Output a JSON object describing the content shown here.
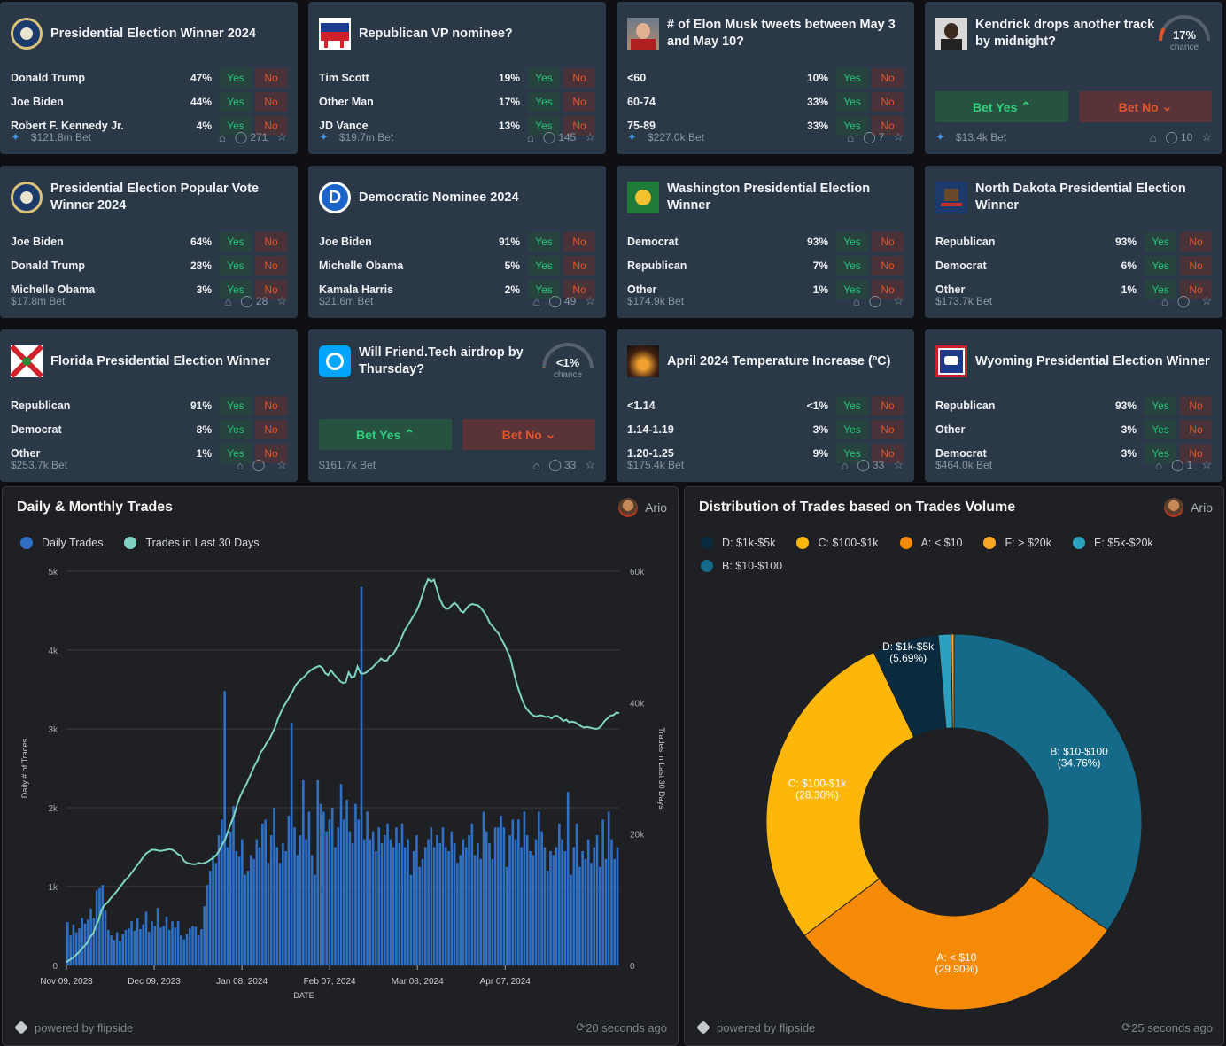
{
  "cards": [
    {
      "title": "Presidential Election Winner 2024",
      "logo": "presidential-seal",
      "rows": [
        {
          "name": "Donald Trump",
          "pct": "47%"
        },
        {
          "name": "Joe Biden",
          "pct": "44%"
        },
        {
          "name": "Robert F. Kennedy Jr.",
          "pct": "4%"
        }
      ],
      "volume": "$121.8m Bet",
      "comments": "271",
      "pinned": true
    },
    {
      "title": "Republican VP nominee?",
      "logo": "gop-elephant",
      "rows": [
        {
          "name": "Tim Scott",
          "pct": "19%"
        },
        {
          "name": "Other Man",
          "pct": "17%"
        },
        {
          "name": "JD Vance",
          "pct": "13%"
        }
      ],
      "volume": "$19.7m Bet",
      "comments": "145",
      "pinned": true
    },
    {
      "title": "# of Elon Musk tweets between May 3 and May 10?",
      "logo": "elon-photo",
      "rows": [
        {
          "name": "<60",
          "pct": "10%"
        },
        {
          "name": "60-74",
          "pct": "33%"
        },
        {
          "name": "75-89",
          "pct": "33%"
        }
      ],
      "volume": "$227.0k Bet",
      "comments": "7",
      "pinned": true
    },
    {
      "title": "Kendrick drops another track by midnight?",
      "logo": "kendrick-photo",
      "gauge": {
        "pct": "17%",
        "label": "chance",
        "value": 0.17
      },
      "bet_yes": "Bet Yes",
      "bet_no": "Bet No",
      "volume": "$13.4k Bet",
      "comments": "10",
      "pinned": true
    },
    {
      "title": "Presidential Election Popular Vote Winner 2024",
      "logo": "presidential-seal",
      "rows": [
        {
          "name": "Joe Biden",
          "pct": "64%"
        },
        {
          "name": "Donald Trump",
          "pct": "28%"
        },
        {
          "name": "Michelle Obama",
          "pct": "3%"
        }
      ],
      "volume": "$17.8m Bet",
      "comments": "28",
      "pinned": false
    },
    {
      "title": "Democratic Nominee 2024",
      "logo": "dem-d",
      "rows": [
        {
          "name": "Joe Biden",
          "pct": "91%"
        },
        {
          "name": "Michelle Obama",
          "pct": "5%"
        },
        {
          "name": "Kamala Harris",
          "pct": "2%"
        }
      ],
      "volume": "$21.6m Bet",
      "comments": "49",
      "pinned": false
    },
    {
      "title": "Washington Presidential Election Winner",
      "logo": "wa-flag",
      "rows": [
        {
          "name": "Democrat",
          "pct": "93%"
        },
        {
          "name": "Republican",
          "pct": "7%"
        },
        {
          "name": "Other",
          "pct": "1%"
        }
      ],
      "volume": "$174.9k Bet",
      "comments": "",
      "pinned": false
    },
    {
      "title": "North Dakota Presidential Election Winner",
      "logo": "nd-flag",
      "rows": [
        {
          "name": "Republican",
          "pct": "93%"
        },
        {
          "name": "Democrat",
          "pct": "6%"
        },
        {
          "name": "Other",
          "pct": "1%"
        }
      ],
      "volume": "$173.7k Bet",
      "comments": "",
      "pinned": false
    },
    {
      "title": "Florida Presidential Election Winner",
      "logo": "fl-flag",
      "rows": [
        {
          "name": "Republican",
          "pct": "91%"
        },
        {
          "name": "Democrat",
          "pct": "8%"
        },
        {
          "name": "Other",
          "pct": "1%"
        }
      ],
      "volume": "$253.7k Bet",
      "comments": "",
      "pinned": false
    },
    {
      "title": "Will Friend.Tech airdrop by Thursday?",
      "logo": "friendtech-logo",
      "gauge": {
        "pct": "<1%",
        "label": "chance",
        "value": 0.01
      },
      "bet_yes": "Bet Yes",
      "bet_no": "Bet No",
      "volume": "$161.7k Bet",
      "comments": "33",
      "pinned": false
    },
    {
      "title": "April 2024 Temperature Increase (ºC)",
      "logo": "temperature-photo",
      "rows": [
        {
          "name": "<1.14",
          "pct": "<1%"
        },
        {
          "name": "1.14-1.19",
          "pct": "3%"
        },
        {
          "name": "1.20-1.25",
          "pct": "9%"
        }
      ],
      "volume": "$175.4k Bet",
      "comments": "33",
      "pinned": false
    },
    {
      "title": "Wyoming Presidential Election Winner",
      "logo": "wy-flag",
      "rows": [
        {
          "name": "Republican",
          "pct": "93%"
        },
        {
          "name": "Other",
          "pct": "3%"
        },
        {
          "name": "Democrat",
          "pct": "3%"
        }
      ],
      "volume": "$464.0k Bet",
      "comments": "1",
      "pinned": false
    }
  ],
  "yes_label": "Yes",
  "no_label": "No",
  "left_panel": {
    "title": "Daily & Monthly Trades",
    "author": "Ario",
    "powered": "powered by flipside",
    "updated": "20 seconds ago"
  },
  "right_panel": {
    "title": "Distribution of Trades based on Trades Volume",
    "author": "Ario",
    "powered": "powered by flipside",
    "updated": "25 seconds ago"
  },
  "chart_data": [
    {
      "type": "bar",
      "title": "Daily & Monthly Trades",
      "xlabel": "DATE",
      "ylabel": "Daily # of Trades",
      "y2label": "Trades in Last 30 Days",
      "ylim": [
        0,
        5000
      ],
      "y2lim": [
        0,
        60000
      ],
      "yticks": [
        "0",
        "1k",
        "2k",
        "3k",
        "4k",
        "5k"
      ],
      "y2ticks": [
        "0",
        "20k",
        "40k",
        "60k"
      ],
      "xticks": [
        "Nov 09, 2023",
        "Dec 09, 2023",
        "Jan 08, 2024",
        "Feb 07, 2024",
        "Mar 08, 2024",
        "Apr 07, 2024"
      ],
      "series": [
        {
          "name": "Daily Trades",
          "color": "#2f6fc4",
          "type": "bar"
        },
        {
          "name": "Trades in Last 30 Days",
          "color": "#7fd3c3",
          "type": "line"
        }
      ],
      "daily": [
        550,
        380,
        520,
        420,
        470,
        600,
        530,
        580,
        720,
        600,
        950,
        980,
        1020,
        700,
        450,
        380,
        320,
        420,
        310,
        400,
        450,
        470,
        560,
        440,
        600,
        460,
        520,
        680,
        430,
        560,
        500,
        730,
        480,
        500,
        620,
        450,
        560,
        480,
        560,
        380,
        330,
        400,
        470,
        500,
        490,
        380,
        460,
        750,
        1020,
        1200,
        1400,
        1300,
        1650,
        1850,
        3480,
        1500,
        1700,
        2020,
        1450,
        1380,
        1600,
        1150,
        1200,
        1400,
        1350,
        1600,
        1500,
        1800,
        1850,
        1300,
        1650,
        2000,
        1500,
        1300,
        1550,
        1450,
        1900,
        3080,
        1750,
        1400,
        1650,
        2350,
        1600,
        1950,
        1400,
        1150,
        2350,
        2050,
        1950,
        1700,
        1850,
        2000,
        1500,
        1750,
        2300,
        1850,
        2100,
        1700,
        1550,
        2050,
        1850,
        4800,
        1600,
        1950,
        1600,
        1700,
        1450,
        1750,
        1550,
        1650,
        1800,
        1600,
        1500,
        1750,
        1550,
        1800,
        1500,
        1600,
        1150,
        1450,
        1650,
        1250,
        1350,
        1500,
        1600,
        1750,
        1500,
        1650,
        1550,
        1750,
        1500,
        1450,
        1700,
        1550,
        1300,
        1400,
        1600,
        1500,
        1650,
        1800,
        1400,
        1550,
        1350,
        1950,
        1700,
        1550,
        1350,
        1750,
        1750,
        1900,
        1750,
        1250,
        1650,
        1850,
        1600,
        1850,
        1500,
        1950,
        1650,
        1450,
        1400,
        1600,
        1950,
        1700,
        1500,
        1200,
        1450,
        1400,
        1500,
        1800,
        1600,
        1450,
        2200,
        1150,
        1500,
        1800,
        1250,
        1450,
        1350,
        1600,
        1300,
        1500,
        1650,
        1250,
        1850,
        1350,
        1950,
        1600,
        1350,
        1500
      ],
      "monthly": [
        500,
        800,
        1100,
        1500,
        1900,
        2400,
        2900,
        3400,
        4300,
        4800,
        6000,
        7000,
        8500,
        9200,
        9600,
        10200,
        10700,
        11200,
        11800,
        12400,
        13000,
        13400,
        14000,
        14600,
        15200,
        15800,
        16400,
        17000,
        17300,
        17600,
        17600,
        17500,
        17400,
        17500,
        17600,
        17700,
        17600,
        17300,
        16900,
        16700,
        15900,
        15600,
        15500,
        15400,
        15400,
        15600,
        15500,
        15600,
        15800,
        16100,
        16400,
        16800,
        17500,
        18400,
        19200,
        20500,
        21700,
        22800,
        24400,
        25600,
        26600,
        27400,
        28400,
        29400,
        30400,
        31200,
        32400,
        33000,
        33800,
        34400,
        35300,
        36300,
        37600,
        38600,
        39500,
        40200,
        41000,
        41800,
        42700,
        43200,
        43600,
        44000,
        44500,
        44900,
        45200,
        45400,
        45600,
        45300,
        44500,
        44200,
        44900,
        44300,
        43800,
        43300,
        43000,
        43100,
        44600,
        43800,
        44000,
        45500,
        44500,
        44400,
        44600,
        45000,
        45300,
        45800,
        46200,
        46700,
        46400,
        46400,
        47100,
        47300,
        48000,
        48900,
        49900,
        51000,
        51700,
        52400,
        53200,
        53900,
        54900,
        56300,
        57700,
        58800,
        58400,
        58700,
        57300,
        55800,
        54800,
        54300,
        54300,
        54800,
        55200,
        54800,
        54000,
        53700,
        54300,
        54800,
        55000,
        54900,
        54800,
        54400,
        53800,
        53100,
        52100,
        51600,
        51000,
        50500,
        49600,
        48800,
        47800,
        46800,
        44900,
        43100,
        41700,
        40400,
        39400,
        38800,
        38300,
        38000,
        37900,
        38100,
        38000,
        37800,
        37900,
        37600,
        38000,
        38000,
        37600,
        37200,
        37400,
        37000,
        37100,
        37000,
        36700,
        36400,
        36200,
        36300,
        36200,
        36100,
        36000,
        36100,
        36500,
        37200,
        37600,
        38000,
        38100,
        38500,
        38400
      ],
      "ylegend": [
        "Daily Trades",
        "Trades in Last 30 Days"
      ]
    },
    {
      "type": "pie",
      "title": "Distribution of Trades based on Trades Volume",
      "legend": [
        "D: $1k-$5k",
        "C: $100-$1k",
        "A: < $10",
        "F: > $20k",
        "E: $5k-$20k",
        "B: $10-$100"
      ],
      "slices": [
        {
          "label": "B: $10-$100",
          "value": 34.76,
          "pct": "(34.76%)",
          "color": "#156a8a"
        },
        {
          "label": "A: < $10",
          "value": 29.9,
          "pct": "(29.90%)",
          "color": "#f58a07"
        },
        {
          "label": "C: $100-$1k",
          "value": 28.3,
          "pct": "(28.30%)",
          "color": "#fdb70b"
        },
        {
          "label": "D: $1k-$5k",
          "value": 5.69,
          "pct": "(5.69%)",
          "color": "#0a2a40"
        },
        {
          "label": "E: $5k-$20k",
          "value": 1.1,
          "pct": "",
          "color": "#2ba0bf"
        },
        {
          "label": "F: > $20k",
          "value": 0.25,
          "pct": "",
          "color": "#f9a825"
        }
      ]
    }
  ]
}
